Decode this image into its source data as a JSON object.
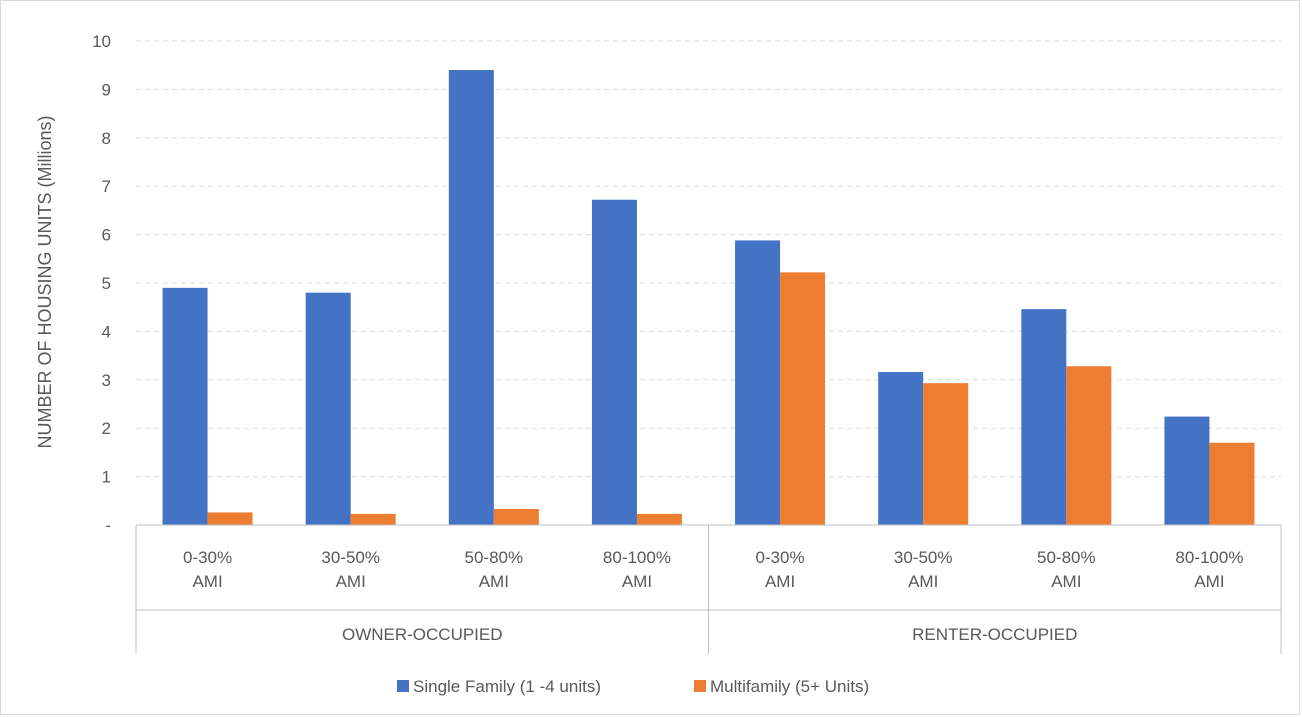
{
  "chart_data": {
    "type": "bar",
    "title": "",
    "ylabel": "NUMBER OF HOUSING UNITS (Millions)",
    "ylim": [
      0,
      10
    ],
    "yticks": [
      "-",
      "1",
      "2",
      "3",
      "4",
      "5",
      "6",
      "7",
      "8",
      "9",
      "10"
    ],
    "grid": true,
    "legend_position": "bottom",
    "groups": [
      {
        "label": "OWNER-OCCUPIED",
        "categories": [
          [
            "0-30%",
            "AMI"
          ],
          [
            "30-50%",
            "AMI"
          ],
          [
            "50-80%",
            "AMI"
          ],
          [
            "80-100%",
            "AMI"
          ]
        ]
      },
      {
        "label": "RENTER-OCCUPIED",
        "categories": [
          [
            "0-30%",
            "AMI"
          ],
          [
            "30-50%",
            "AMI"
          ],
          [
            "50-80%",
            "AMI"
          ],
          [
            "80-100%",
            "AMI"
          ]
        ]
      }
    ],
    "series": [
      {
        "name": "Single Family (1 -4 units)",
        "color": "#4472c4",
        "values": [
          4.9,
          4.8,
          9.4,
          6.72,
          5.88,
          3.16,
          4.46,
          2.24
        ]
      },
      {
        "name": "Multifamily (5+ Units)",
        "color": "#ed7d31",
        "values": [
          0.26,
          0.23,
          0.33,
          0.23,
          5.22,
          2.93,
          3.28,
          1.7
        ]
      }
    ]
  }
}
